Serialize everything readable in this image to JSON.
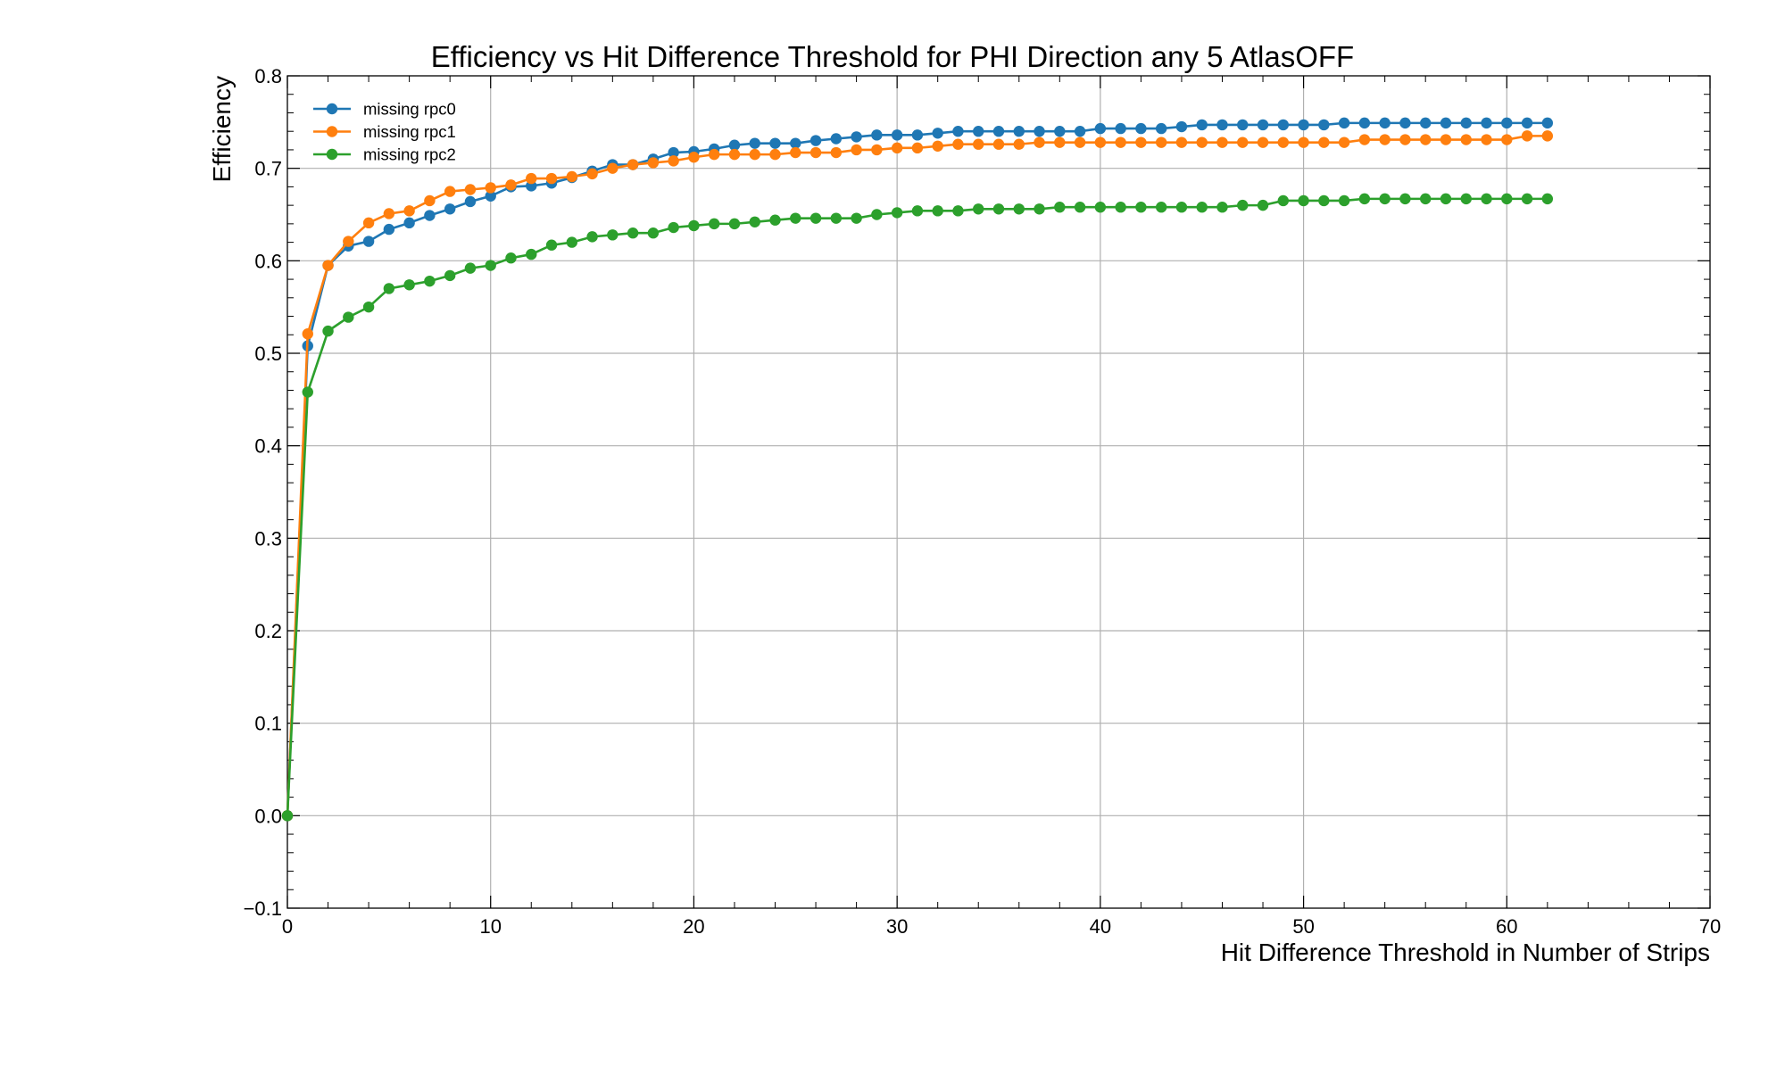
{
  "chart_data": {
    "type": "line",
    "title": "Efficiency vs Hit Difference Threshold for PHI Direction any 5 AtlasOFF",
    "xlabel": "Hit Difference Threshold in Number of Strips",
    "ylabel": "Efficiency",
    "xlim": [
      0,
      70
    ],
    "ylim": [
      -0.1,
      0.8
    ],
    "xticks": [
      0,
      10,
      20,
      30,
      40,
      50,
      60,
      70
    ],
    "yticks": [
      -0.1,
      0.0,
      0.1,
      0.2,
      0.3,
      0.4,
      0.5,
      0.6,
      0.7,
      0.8
    ],
    "xtick_labels": [
      "0",
      "10",
      "20",
      "30",
      "40",
      "50",
      "60",
      "70"
    ],
    "ytick_labels": [
      "−0.1",
      "0.0",
      "0.1",
      "0.2",
      "0.3",
      "0.4",
      "0.5",
      "0.6",
      "0.7",
      "0.8"
    ],
    "grid": true,
    "legend_position": "top-left",
    "markers": "circle",
    "x": [
      0,
      1,
      2,
      3,
      4,
      5,
      6,
      7,
      8,
      9,
      10,
      11,
      12,
      13,
      14,
      15,
      16,
      17,
      18,
      19,
      20,
      21,
      22,
      23,
      24,
      25,
      26,
      27,
      28,
      29,
      30,
      31,
      32,
      33,
      34,
      35,
      36,
      37,
      38,
      39,
      40,
      41,
      42,
      43,
      44,
      45,
      46,
      47,
      48,
      49,
      50,
      51,
      52,
      53,
      54,
      55,
      56,
      57,
      58,
      59,
      60,
      61,
      62
    ],
    "series": [
      {
        "name": "missing rpc0",
        "color": "#1f77b4",
        "values": [
          0.0,
          0.508,
          0.595,
          0.616,
          0.621,
          0.634,
          0.641,
          0.649,
          0.656,
          0.664,
          0.67,
          0.68,
          0.681,
          0.684,
          0.69,
          0.697,
          0.704,
          0.704,
          0.71,
          0.717,
          0.718,
          0.721,
          0.725,
          0.727,
          0.727,
          0.727,
          0.73,
          0.732,
          0.734,
          0.736,
          0.736,
          0.736,
          0.738,
          0.74,
          0.74,
          0.74,
          0.74,
          0.74,
          0.74,
          0.74,
          0.743,
          0.743,
          0.743,
          0.743,
          0.745,
          0.747,
          0.747,
          0.747,
          0.747,
          0.747,
          0.747,
          0.747,
          0.749,
          0.749,
          0.749,
          0.749,
          0.749,
          0.749,
          0.749,
          0.749,
          0.749,
          0.749,
          0.749
        ]
      },
      {
        "name": "missing rpc1",
        "color": "#ff7f0e",
        "values": [
          0.0,
          0.521,
          0.595,
          0.621,
          0.641,
          0.651,
          0.654,
          0.665,
          0.675,
          0.677,
          0.679,
          0.682,
          0.689,
          0.689,
          0.691,
          0.694,
          0.7,
          0.704,
          0.706,
          0.708,
          0.712,
          0.715,
          0.715,
          0.715,
          0.715,
          0.717,
          0.717,
          0.717,
          0.72,
          0.72,
          0.722,
          0.722,
          0.724,
          0.726,
          0.726,
          0.726,
          0.726,
          0.728,
          0.728,
          0.728,
          0.728,
          0.728,
          0.728,
          0.728,
          0.728,
          0.728,
          0.728,
          0.728,
          0.728,
          0.728,
          0.728,
          0.728,
          0.728,
          0.731,
          0.731,
          0.731,
          0.731,
          0.731,
          0.731,
          0.731,
          0.731,
          0.735,
          0.735
        ]
      },
      {
        "name": "missing rpc2",
        "color": "#2ca02c",
        "values": [
          0.0,
          0.458,
          0.524,
          0.539,
          0.55,
          0.57,
          0.574,
          0.578,
          0.584,
          0.592,
          0.595,
          0.603,
          0.607,
          0.617,
          0.62,
          0.626,
          0.628,
          0.63,
          0.63,
          0.636,
          0.638,
          0.64,
          0.64,
          0.642,
          0.644,
          0.646,
          0.646,
          0.646,
          0.646,
          0.65,
          0.652,
          0.654,
          0.654,
          0.654,
          0.656,
          0.656,
          0.656,
          0.656,
          0.658,
          0.658,
          0.658,
          0.658,
          0.658,
          0.658,
          0.658,
          0.658,
          0.658,
          0.66,
          0.66,
          0.665,
          0.665,
          0.665,
          0.665,
          0.667,
          0.667,
          0.667,
          0.667,
          0.667,
          0.667,
          0.667,
          0.667,
          0.667,
          0.667
        ]
      }
    ]
  }
}
